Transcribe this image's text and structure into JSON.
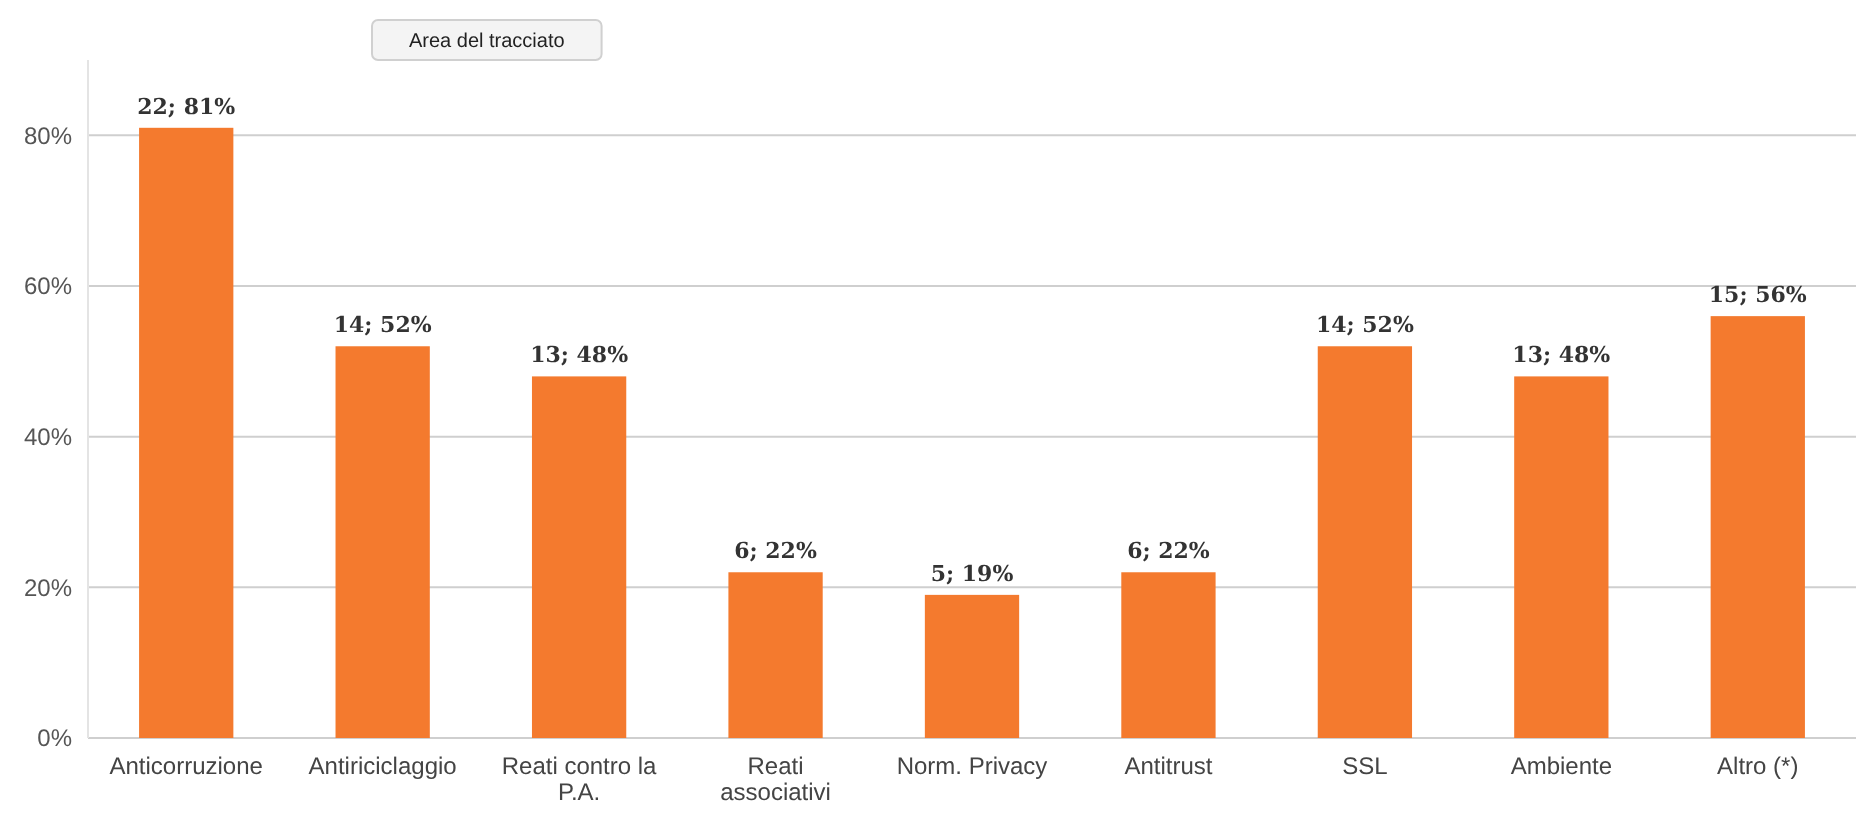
{
  "chart_data": {
    "type": "bar",
    "categories": [
      "Anticorruzione",
      "Antiriciclaggio",
      "Reati contro la P.A.",
      "Reati associativi",
      "Norm. Privacy",
      "Antitrust",
      "SSL",
      "Ambiente",
      "Altro (*)"
    ],
    "values": [
      81,
      52,
      48,
      22,
      19,
      22,
      52,
      48,
      56
    ],
    "value_labels": [
      "22; 81%",
      "14; 52%",
      "13; 48%",
      "6; 22%",
      "5; 19%",
      "6; 22%",
      "14; 52%",
      "13; 48%",
      "15; 56%"
    ],
    "color": "#f47a2e",
    "ylim": [
      0,
      90
    ],
    "yticks": [
      {
        "value": 0,
        "label": "0%"
      },
      {
        "value": 20,
        "label": "20%"
      },
      {
        "value": 40,
        "label": "40%"
      },
      {
        "value": 60,
        "label": "60%"
      },
      {
        "value": 80,
        "label": "80%"
      }
    ],
    "grid": "y",
    "annotations": [
      "Area del tracciato"
    ]
  }
}
